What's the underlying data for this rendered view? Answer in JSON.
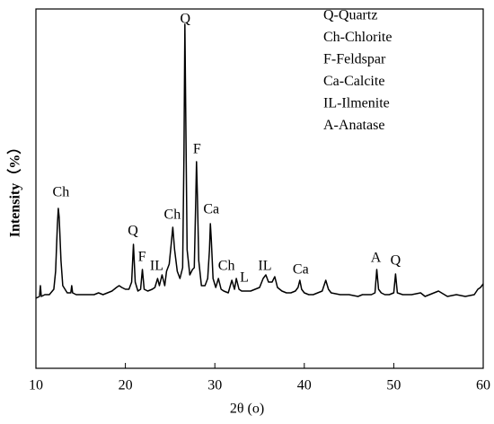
{
  "chart_data": {
    "type": "line",
    "x_label": "2θ (o)",
    "y_label": "Intensity（%）",
    "xlim": [
      10,
      60
    ],
    "xticks": [
      10,
      20,
      30,
      40,
      50,
      60
    ],
    "ylim": [
      0,
      100
    ],
    "grid": false,
    "legend_text": [
      "Q-Quartz",
      "Ch-Chlorite",
      "F-Feldspar",
      "Ca-Calcite",
      "IL-Ilmenite",
      "A-Anatase"
    ],
    "x": [
      10,
      10.4,
      10.5,
      10.6,
      11,
      11.5,
      12,
      12.2,
      12.4,
      12.5,
      12.6,
      12.8,
      13,
      13.5,
      13.9,
      14,
      14.1,
      14.5,
      15,
      15.5,
      16,
      16.5,
      17,
      17.5,
      18,
      18.5,
      19,
      19.3,
      19.6,
      20,
      20.4,
      20.7,
      20.9,
      21.1,
      21.4,
      21.7,
      21.9,
      22.1,
      22.5,
      23,
      23.3,
      23.6,
      23.8,
      24.1,
      24.4,
      24.6,
      24.9,
      25.1,
      25.3,
      25.5,
      25.8,
      26.1,
      26.4,
      26.55,
      26.65,
      26.75,
      26.9,
      27.2,
      27.5,
      27.7,
      27.85,
      27.95,
      28.05,
      28.2,
      28.5,
      28.9,
      29.2,
      29.4,
      29.5,
      29.6,
      29.8,
      30.1,
      30.4,
      30.7,
      31,
      31.5,
      31.9,
      32.2,
      32.4,
      32.7,
      33,
      33.5,
      34,
      34.5,
      35,
      35.4,
      35.7,
      36,
      36.4,
      36.7,
      37,
      37.5,
      38,
      38.5,
      39,
      39.3,
      39.5,
      39.7,
      40,
      40.5,
      41,
      41.5,
      42,
      42.4,
      42.7,
      43,
      44,
      45,
      46,
      46.5,
      47,
      47.5,
      47.9,
      48.1,
      48.3,
      48.6,
      49,
      49.5,
      50,
      50.2,
      50.4,
      51,
      52,
      53,
      53.5,
      54,
      55,
      56,
      57,
      58,
      59,
      59.4,
      59.7,
      60
    ],
    "series": [
      {
        "name": "XRD",
        "color": "#000000",
        "values": [
          19.5,
          20,
          23,
          20,
          20.5,
          20.5,
          22,
          27,
          40,
          44.5,
          42,
          30,
          23,
          21,
          21,
          23,
          21,
          20.5,
          20.5,
          20.5,
          20.5,
          20.5,
          21,
          20.5,
          21,
          21.5,
          22.5,
          23,
          22.5,
          22,
          22,
          24,
          34.5,
          24,
          21.5,
          22,
          27.5,
          22,
          21.5,
          22,
          22.5,
          25,
          23,
          26,
          23,
          27,
          29,
          34,
          39.25,
          33,
          27,
          25,
          28,
          60,
          95.75,
          70,
          33,
          26,
          27.5,
          28,
          45,
          57.5,
          48,
          30,
          23,
          23,
          25,
          33,
          40.25,
          36,
          25,
          22.5,
          25,
          22,
          21.5,
          21,
          24.5,
          22,
          25,
          22,
          21.5,
          21.5,
          21.5,
          22,
          22.5,
          25,
          26,
          24,
          24,
          25.5,
          22.5,
          21.5,
          21,
          21,
          21.5,
          22.5,
          24.5,
          22,
          21,
          20.5,
          20.5,
          21,
          21.5,
          24.5,
          22,
          21,
          20.5,
          20.5,
          20,
          20.5,
          20.5,
          20.5,
          21,
          27.5,
          22,
          21,
          20.5,
          20.5,
          21,
          26.25,
          21,
          20.5,
          20.5,
          21,
          20,
          20.5,
          21.5,
          20,
          20.5,
          20,
          20.5,
          22,
          22.5,
          23.5
        ]
      }
    ],
    "annotations": [
      {
        "text": "Ch",
        "x": 12.8,
        "y": 48.75
      },
      {
        "text": "Q",
        "x": 20.85,
        "y": 38
      },
      {
        "text": "F",
        "x": 21.85,
        "y": 30.75
      },
      {
        "text": "IL",
        "x": 23.5,
        "y": 28.25
      },
      {
        "text": "Ch",
        "x": 25.25,
        "y": 42.5
      },
      {
        "text": "Q",
        "x": 26.7,
        "y": 97
      },
      {
        "text": "F",
        "x": 28,
        "y": 60.75
      },
      {
        "text": "Ca",
        "x": 29.6,
        "y": 44
      },
      {
        "text": "Ch",
        "x": 31.3,
        "y": 28.25
      },
      {
        "text": "L",
        "x": 33.3,
        "y": 25
      },
      {
        "text": "IL",
        "x": 35.6,
        "y": 28.25
      },
      {
        "text": "Ca",
        "x": 39.6,
        "y": 27.25
      },
      {
        "text": "A",
        "x": 48,
        "y": 30.5
      },
      {
        "text": "Q",
        "x": 50.2,
        "y": 29.75
      }
    ]
  }
}
